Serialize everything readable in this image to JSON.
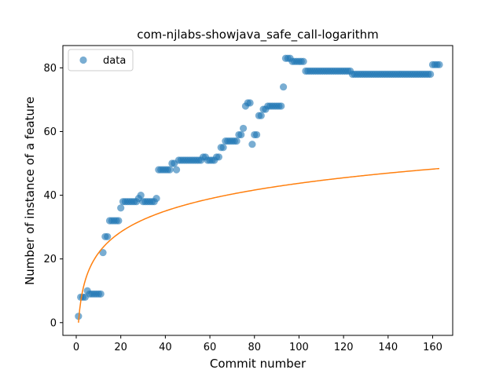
{
  "chart_data": {
    "type": "scatter",
    "title": "com-njlabs-showjava_safe_call-logarithm",
    "xlabel": "Commit number",
    "ylabel": "Number of instance of a feature",
    "xlim": [
      -6,
      169
    ],
    "ylim": [
      -4,
      87
    ],
    "xticks": [
      0,
      20,
      40,
      60,
      80,
      100,
      120,
      140,
      160
    ],
    "yticks": [
      0,
      20,
      40,
      60,
      80
    ],
    "grid": false,
    "legend": {
      "placement": "top-left",
      "entries": [
        "data"
      ]
    },
    "colors": {
      "data": "#1f77b4",
      "fit": "#ff7f0e"
    },
    "series": [
      {
        "name": "data",
        "kind": "scatter",
        "x": [
          1,
          2,
          3,
          4,
          5,
          6,
          7,
          8,
          9,
          10,
          11,
          12,
          13,
          14,
          15,
          16,
          17,
          18,
          19,
          20,
          21,
          22,
          23,
          24,
          25,
          26,
          27,
          28,
          29,
          30,
          31,
          32,
          33,
          34,
          35,
          36,
          37,
          38,
          39,
          40,
          41,
          42,
          43,
          44,
          45,
          46,
          47,
          48,
          49,
          50,
          51,
          52,
          53,
          54,
          55,
          56,
          57,
          58,
          59,
          60,
          61,
          62,
          63,
          64,
          65,
          66,
          67,
          68,
          69,
          70,
          71,
          72,
          73,
          74,
          75,
          76,
          77,
          78,
          79,
          80,
          81,
          82,
          83,
          84,
          85,
          86,
          87,
          88,
          89,
          90,
          91,
          92,
          93,
          94,
          95,
          96,
          97,
          98,
          99,
          100,
          101,
          102,
          103,
          104,
          105,
          106,
          107,
          108,
          109,
          110,
          111,
          112,
          113,
          114,
          115,
          116,
          117,
          118,
          119,
          120,
          121,
          122,
          123,
          124,
          125,
          126,
          127,
          128,
          129,
          130,
          131,
          132,
          133,
          134,
          135,
          136,
          137,
          138,
          139,
          140,
          141,
          142,
          143,
          144,
          145,
          146,
          147,
          148,
          149,
          150,
          151,
          152,
          153,
          154,
          155,
          156,
          157,
          158,
          159,
          160,
          161,
          162,
          163
        ],
        "y": [
          2,
          8,
          8,
          8,
          10,
          9,
          9,
          9,
          9,
          9,
          9,
          22,
          27,
          27,
          32,
          32,
          32,
          32,
          32,
          36,
          38,
          38,
          38,
          38,
          38,
          38,
          38,
          39,
          40,
          38,
          38,
          38,
          38,
          38,
          38,
          39,
          48,
          48,
          48,
          48,
          48,
          48,
          50,
          50,
          48,
          51,
          51,
          51,
          51,
          51,
          51,
          51,
          51,
          51,
          51,
          51,
          52,
          52,
          51,
          51,
          51,
          51,
          52,
          52,
          55,
          55,
          57,
          57,
          57,
          57,
          57,
          57,
          59,
          59,
          61,
          68,
          69,
          69,
          56,
          59,
          59,
          65,
          65,
          67,
          67,
          68,
          68,
          68,
          68,
          68,
          68,
          68,
          74,
          83,
          83,
          83,
          82,
          82,
          82,
          82,
          82,
          82,
          79,
          79,
          79,
          79,
          79,
          79,
          79,
          79,
          79,
          79,
          79,
          79,
          79,
          79,
          79,
          79,
          79,
          79,
          79,
          79,
          79,
          78,
          78,
          78,
          78,
          78,
          78,
          78,
          78,
          78,
          78,
          78,
          78,
          78,
          78,
          78,
          78,
          78,
          78,
          78,
          78,
          78,
          78,
          78,
          78,
          78,
          78,
          78,
          78,
          78,
          78,
          78,
          78,
          78,
          78,
          78,
          78,
          81,
          81,
          81,
          81
        ]
      },
      {
        "kind": "line",
        "model": "logarithmic",
        "a": 9.5,
        "b": 0,
        "x_range": [
          1,
          163
        ]
      }
    ]
  }
}
